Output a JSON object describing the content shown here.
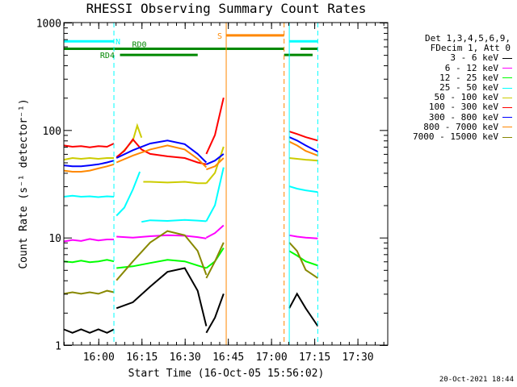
{
  "chart_data": {
    "type": "line",
    "title": "RHESSI Observing Summary Count Rates",
    "xlabel": "Start Time (16-Oct-05 15:56:02)",
    "ylabel": "Count Rate (s⁻¹ detector⁻¹)",
    "yscale": "log",
    "ylim": [
      1,
      1000
    ],
    "xlim_minutes": [
      0,
      37.5
    ],
    "x_ticks": [
      "16:00",
      "16:15",
      "16:30",
      "16:45",
      "17:00",
      "17:15",
      "17:30"
    ],
    "y_ticks": [
      "1",
      "10",
      "100",
      "1000"
    ],
    "legend_header": [
      "Det 1,3,4,5,6,9,",
      "FDecim 1, Att 0"
    ],
    "legend_placement": "right",
    "series": [
      {
        "name": "3 - 6 keV",
        "color": "#000000",
        "segments": [
          {
            "x": [
              0,
              1,
              2,
              3,
              4,
              5,
              5.8
            ],
            "y": [
              1.4,
              1.3,
              1.4,
              1.3,
              1.4,
              1.3,
              1.4
            ]
          },
          {
            "x": [
              6.1,
              8,
              10,
              12,
              14,
              15.5,
              16.5
            ],
            "y": [
              2.2,
              2.5,
              3.5,
              4.8,
              5.2,
              3.2,
              1.5
            ]
          },
          {
            "x": [
              16.5,
              17.5,
              18.5
            ],
            "y": [
              1.3,
              1.8,
              3.0
            ]
          },
          {
            "x": [
              26.1,
              27,
              28,
              29.4
            ],
            "y": [
              2.2,
              3.0,
              2.2,
              1.5
            ]
          }
        ]
      },
      {
        "name": "6 - 12 keV",
        "color": "#ff00ff",
        "segments": [
          {
            "x": [
              0,
              1,
              2,
              3,
              4,
              5,
              5.8
            ],
            "y": [
              9.2,
              9.5,
              9.3,
              9.7,
              9.4,
              9.6,
              9.6
            ]
          },
          {
            "x": [
              6.1,
              8,
              10,
              12,
              14,
              15.5,
              16.5
            ],
            "y": [
              10.2,
              10,
              10.3,
              10.5,
              10.4,
              10.1,
              9.8
            ]
          },
          {
            "x": [
              16.5,
              17.5,
              18.5
            ],
            "y": [
              10,
              11,
              13
            ]
          },
          {
            "x": [
              26.1,
              27,
              28,
              29.4
            ],
            "y": [
              10.5,
              10.2,
              10,
              9.8
            ]
          }
        ]
      },
      {
        "name": "12 - 25 keV",
        "color": "#00ff00",
        "segments": [
          {
            "x": [
              0,
              1,
              2,
              3,
              4,
              5,
              5.8
            ],
            "y": [
              6.0,
              5.9,
              6.1,
              5.9,
              6.0,
              6.2,
              6.0
            ]
          },
          {
            "x": [
              6.1,
              8,
              10,
              12,
              14,
              15.5,
              16.5
            ],
            "y": [
              5.2,
              5.4,
              5.8,
              6.2,
              6.0,
              5.5,
              5.2
            ]
          },
          {
            "x": [
              16.5,
              17.5,
              18.5
            ],
            "y": [
              5.2,
              6.0,
              8.0
            ]
          },
          {
            "x": [
              26.1,
              27,
              28,
              29.4
            ],
            "y": [
              7.5,
              6.8,
              6.0,
              5.5
            ]
          }
        ]
      },
      {
        "name": "25 - 50 keV",
        "color": "#00ffff",
        "segments": [
          {
            "x": [
              0,
              1,
              2,
              3,
              4,
              5,
              5.8
            ],
            "y": [
              24,
              24.5,
              24,
              24.2,
              23.8,
              24.2,
              24
            ]
          },
          {
            "x": [
              6.1,
              7,
              8,
              8.8
            ],
            "y": [
              16,
              19,
              28,
              41
            ]
          },
          {
            "x": [
              9,
              10,
              12,
              14,
              15.5,
              16.5
            ],
            "y": [
              14,
              14.5,
              14.3,
              14.6,
              14.4,
              14.2
            ]
          },
          {
            "x": [
              16.5,
              17.5,
              18.5
            ],
            "y": [
              14.2,
              20,
              45
            ]
          },
          {
            "x": [
              26.1,
              27,
              28,
              29.4
            ],
            "y": [
              30,
              28.5,
              27.5,
              26.5
            ]
          }
        ]
      },
      {
        "name": "50 - 100 keV",
        "color": "#cccc00",
        "segments": [
          {
            "x": [
              0,
              1,
              2,
              3,
              4,
              5,
              5.8
            ],
            "y": [
              53,
              55,
              54,
              55,
              54,
              55,
              55
            ]
          },
          {
            "x": [
              6.1,
              7,
              8,
              8.5,
              9
            ],
            "y": [
              55,
              65,
              80,
              110,
              85
            ]
          },
          {
            "x": [
              9.2,
              10,
              12,
              14,
              15.5,
              16.5
            ],
            "y": [
              33,
              33,
              32.5,
              33,
              32,
              32
            ]
          },
          {
            "x": [
              16.5,
              17.5,
              18.5
            ],
            "y": [
              32,
              40,
              70
            ]
          },
          {
            "x": [
              26.1,
              27,
              28,
              29.4
            ],
            "y": [
              55,
              54,
              53,
              52
            ]
          }
        ]
      },
      {
        "name": "100 - 300 keV",
        "color": "#ff0000",
        "segments": [
          {
            "x": [
              0,
              1,
              2,
              3,
              4,
              5,
              5.8
            ],
            "y": [
              72,
              70,
              71,
              69,
              71,
              70,
              75
            ]
          },
          {
            "x": [
              6.1,
              7,
              8,
              9,
              10,
              12,
              14,
              15.5,
              16.5
            ],
            "y": [
              56,
              64,
              82,
              66,
              60,
              57,
              55,
              50,
              48
            ]
          },
          {
            "x": [
              16.5,
              17.5,
              18.5
            ],
            "y": [
              60,
              90,
              200
            ]
          },
          {
            "x": [
              26.1,
              27,
              28,
              29.4
            ],
            "y": [
              97,
              92,
              86,
              80
            ]
          }
        ]
      },
      {
        "name": "300 - 800 keV",
        "color": "#0000ff",
        "segments": [
          {
            "x": [
              0,
              1,
              2,
              3,
              4,
              5,
              5.8
            ],
            "y": [
              47,
              46,
              46,
              47,
              48,
              50,
              52
            ]
          },
          {
            "x": [
              6.1,
              8,
              10,
              12,
              14,
              15.5,
              16.5
            ],
            "y": [
              55,
              65,
              75,
              80,
              74,
              60,
              50
            ]
          },
          {
            "x": [
              16.5,
              17.5,
              18.5
            ],
            "y": [
              48,
              52,
              60
            ]
          },
          {
            "x": [
              26.1,
              27,
              28,
              29.4
            ],
            "y": [
              86,
              80,
              72,
              63
            ]
          }
        ]
      },
      {
        "name": "800 - 7000 keV",
        "color": "#ff8800",
        "segments": [
          {
            "x": [
              0,
              1,
              2,
              3,
              4,
              5,
              5.8
            ],
            "y": [
              42,
              41,
              41,
              42,
              44,
              46,
              48
            ]
          },
          {
            "x": [
              6.1,
              8,
              10,
              12,
              14,
              15.5,
              16.5
            ],
            "y": [
              50,
              58,
              66,
              72,
              66,
              54,
              45
            ]
          },
          {
            "x": [
              16.5,
              17.5,
              18.5
            ],
            "y": [
              43,
              46,
              55
            ]
          },
          {
            "x": [
              26.1,
              27,
              28,
              29.4
            ],
            "y": [
              78,
              72,
              64,
              58
            ]
          }
        ]
      },
      {
        "name": "7000 - 15000 keV",
        "color": "#888800",
        "segments": [
          {
            "x": [
              0,
              1,
              2,
              3,
              4,
              5,
              5.8
            ],
            "y": [
              3.0,
              3.1,
              3.0,
              3.1,
              3.0,
              3.2,
              3.1
            ]
          },
          {
            "x": [
              6.1,
              8,
              10,
              12,
              14,
              15.5,
              16.5
            ],
            "y": [
              4.0,
              6.0,
              9.0,
              11.5,
              10.5,
              7.5,
              4.5
            ]
          },
          {
            "x": [
              16.5,
              17.5,
              18.5
            ],
            "y": [
              4.2,
              6.0,
              9.0
            ]
          },
          {
            "x": [
              26.1,
              27,
              28,
              29.4
            ],
            "y": [
              9.0,
              7.5,
              5.0,
              4.2
            ]
          }
        ]
      }
    ],
    "flag_labels": [
      {
        "text": "N",
        "color": "#00ffff"
      },
      {
        "text": "RD0",
        "color": "#008800"
      },
      {
        "text": "RD4",
        "color": "#008800"
      },
      {
        "text": "S",
        "color": "#ff8800"
      }
    ],
    "flag_bars": [
      {
        "flag": "N",
        "color": "#00ffff",
        "level": 670,
        "intervals": [
          [
            0,
            5.8
          ],
          [
            26.1,
            29.4
          ]
        ]
      },
      {
        "flag": "S",
        "color": "#ff8800",
        "level": 760,
        "intervals": [
          [
            18.8,
            25.5
          ]
        ]
      },
      {
        "flag": "RD0",
        "color": "#008800",
        "level": 570,
        "intervals": [
          [
            0,
            25.5
          ],
          [
            27.4,
            29.4
          ]
        ]
      },
      {
        "flag": "RD4",
        "color": "#008800",
        "level": 500,
        "intervals": [
          [
            6.5,
            15.5
          ],
          [
            25.5,
            28.8
          ]
        ]
      }
    ],
    "vertical_markers": [
      {
        "x": 5.8,
        "color": "#00ffff",
        "style": "dashed"
      },
      {
        "x": 18.8,
        "color": "#ff8800",
        "style": "solid"
      },
      {
        "x": 25.5,
        "color": "#ff8800",
        "style": "dashed"
      },
      {
        "x": 26.1,
        "color": "#00ffff",
        "style": "solid"
      },
      {
        "x": 29.4,
        "color": "#00ffff",
        "style": "dashed"
      }
    ]
  },
  "footer": {
    "date": "20-Oct-2021 18:44"
  }
}
